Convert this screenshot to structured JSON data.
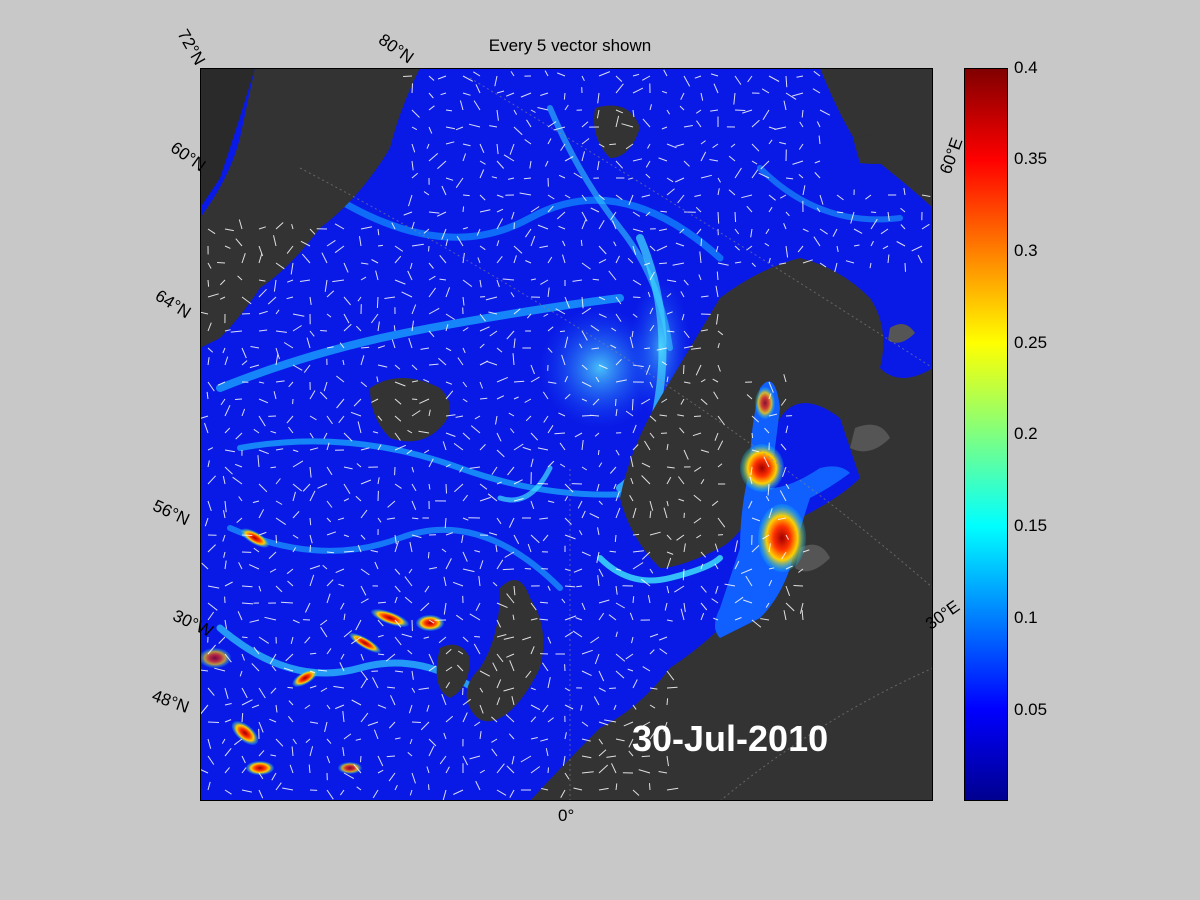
{
  "title": "Every 5 vector shown",
  "date": "30-Jul-2010",
  "grid_labels": {
    "lat_72": "72°N",
    "lat_80": "80°N",
    "lat_60": "60°N",
    "lat_64": "64°N",
    "lat_56": "56°N",
    "lon_30w": "30°W",
    "lat_48": "48°N",
    "lon_0": "0°",
    "lon_30e": "30°E",
    "lon_60e": "60°E"
  },
  "colorbar": {
    "ticks": [
      "0.4",
      "0.35",
      "0.3",
      "0.25",
      "0.2",
      "0.15",
      "0.1",
      "0.05"
    ],
    "min": 0,
    "max": 0.4,
    "colormap": "jet"
  },
  "colors": {
    "land": "#333333",
    "ocean_low": "#0a1ae6",
    "vector": "#ffffff",
    "background": "#c8c8c8"
  }
}
